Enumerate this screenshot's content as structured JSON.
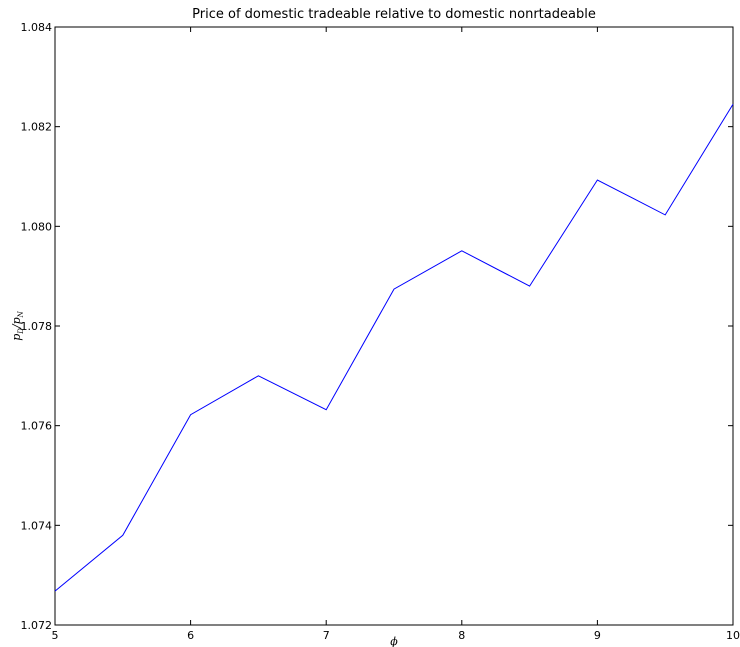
{
  "chart_data": {
    "type": "line",
    "title": "Price of domestic tradeable relative to domestic nonrtadeable",
    "xlabel": "ϕ",
    "ylabel": {
      "p_base": "p",
      "d_sub": "D",
      "slash": "/",
      "n_base": "p",
      "n_sub": "N"
    },
    "xlim": [
      5,
      10
    ],
    "ylim": [
      1.072,
      1.084
    ],
    "xticks": [
      5,
      6,
      7,
      8,
      9,
      10
    ],
    "xtick_labels": [
      "5",
      "6",
      "7",
      "8",
      "9",
      "10"
    ],
    "yticks": [
      1.072,
      1.074,
      1.076,
      1.078,
      1.08,
      1.082,
      1.084
    ],
    "ytick_labels": [
      "1.072",
      "1.074",
      "1.076",
      "1.078",
      "1.080",
      "1.082",
      "1.084"
    ],
    "grid": false,
    "series": [
      {
        "color": "#0000ff",
        "x": [
          5,
          5.5,
          6,
          6.5,
          7,
          7.5,
          8,
          8.5,
          9,
          9.5,
          10
        ],
        "y": [
          1.07268,
          1.0738,
          1.07622,
          1.077,
          1.07632,
          1.07874,
          1.07951,
          1.0788,
          1.08093,
          1.08023,
          1.08245
        ]
      }
    ]
  }
}
